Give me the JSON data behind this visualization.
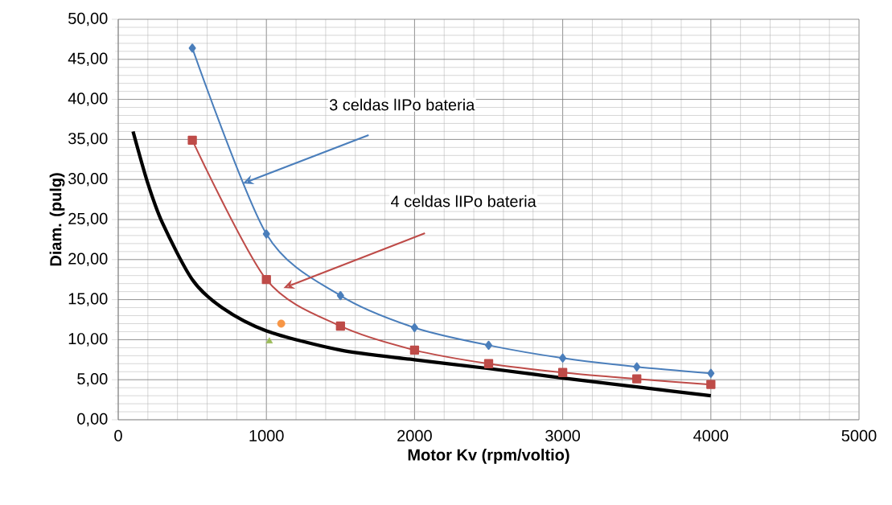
{
  "chart_data": {
    "type": "line",
    "xlabel": "Motor Kv (rpm/voltio)",
    "ylabel": "Diam. (pulg)",
    "xlim": [
      0,
      5000
    ],
    "ylim": [
      0,
      50
    ],
    "xticks": [
      0,
      1000,
      2000,
      3000,
      4000,
      5000
    ],
    "yticks": [
      {
        "value": 0,
        "label": "0,00"
      },
      {
        "value": 5,
        "label": "5,00"
      },
      {
        "value": 10,
        "label": "10,00"
      },
      {
        "value": 15,
        "label": "15,00"
      },
      {
        "value": 20,
        "label": "20,00"
      },
      {
        "value": 25,
        "label": "25,00"
      },
      {
        "value": 30,
        "label": "30,00"
      },
      {
        "value": 35,
        "label": "35,00"
      },
      {
        "value": 40,
        "label": "40,00"
      },
      {
        "value": 45,
        "label": "45,00"
      },
      {
        "value": 50,
        "label": "50,00"
      }
    ],
    "grid": true,
    "series": [
      {
        "color": "#4a7ebb",
        "marker": "diamond",
        "x": [
          500,
          1000,
          1500,
          2000,
          2500,
          3000,
          3500,
          4000
        ],
        "values": [
          46.4,
          23.2,
          15.5,
          11.5,
          9.3,
          7.7,
          6.6,
          5.8
        ]
      },
      {
        "color": "#be4b48",
        "marker": "square",
        "x": [
          500,
          1000,
          1500,
          2000,
          2500,
          3000,
          3500,
          4000
        ],
        "values": [
          34.9,
          17.5,
          11.7,
          8.7,
          7.0,
          5.9,
          5.1,
          4.4
        ]
      },
      {
        "color": "#000000",
        "marker": "none",
        "x": [
          100,
          200,
          300,
          500,
          700,
          1000,
          1500,
          2000,
          2500,
          3000,
          3500,
          4000
        ],
        "values": [
          36.0,
          29.5,
          24.5,
          17.5,
          14.0,
          11.1,
          8.7,
          7.5,
          6.4,
          5.2,
          4.1,
          3.0
        ]
      },
      {
        "type": "scatter",
        "color": "#f79646",
        "marker": "circle",
        "x": [
          1100
        ],
        "values": [
          12.0
        ]
      },
      {
        "type": "scatter",
        "color": "#9bbb59",
        "marker": "triangle",
        "x": [
          1020
        ],
        "values": [
          9.8
        ]
      }
    ],
    "annotations": [
      "3 celdas lIPo bateria",
      "4 celdas lIPo bateria"
    ]
  }
}
